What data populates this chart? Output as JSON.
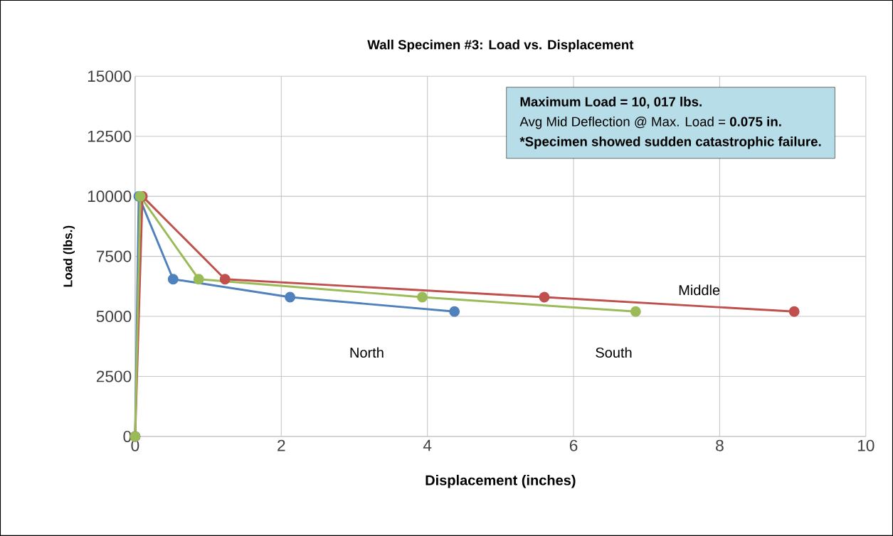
{
  "chart_data": {
    "type": "line",
    "title": "Wall Specimen #3: Load vs. Displacement",
    "xlabel": "Displacement (inches)",
    "ylabel": "Load (lbs.)",
    "series": [
      {
        "name": "North",
        "color": "#4f81bd",
        "x": [
          0,
          0.05,
          0.52,
          2.12,
          4.37
        ],
        "values": [
          0,
          10000,
          6550,
          5800,
          5200
        ]
      },
      {
        "name": "Middle",
        "color": "#c0504d",
        "x": [
          0,
          0.1,
          1.23,
          5.6,
          9.02
        ],
        "values": [
          0,
          10000,
          6550,
          5800,
          5200
        ]
      },
      {
        "name": "South",
        "color": "#9bbb59",
        "x": [
          0,
          0.07,
          0.87,
          3.93,
          6.85
        ],
        "values": [
          0,
          10000,
          6550,
          5800,
          5200
        ]
      }
    ],
    "xlim": [
      0,
      10
    ],
    "ylim": [
      0,
      15000
    ],
    "xticks": [
      0,
      2,
      4,
      6,
      8,
      10
    ],
    "yticks": [
      0,
      2500,
      5000,
      7500,
      10000,
      12500,
      15000
    ],
    "grid": true,
    "marker": "circle",
    "line_style": "solid",
    "legend": false,
    "annotations": [
      "**Maximum Load = 10, 017 lbs.**",
      "Avg Mid Deflection @ Max. Load = **0.075 in.**",
      "*Specimen showed sudden catastrophic failure."
    ]
  }
}
